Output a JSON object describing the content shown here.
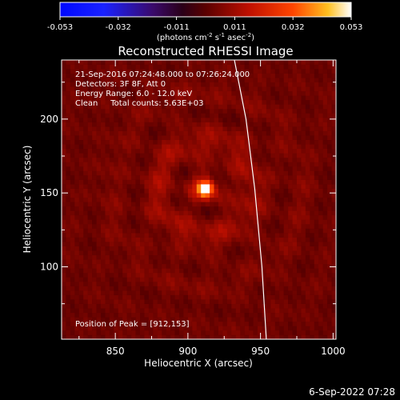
{
  "chart_data": {
    "type": "heatmap",
    "title": "Reconstructed RHESSI Image",
    "xlabel": "Heliocentric X (arcsec)",
    "ylabel": "Heliocentric Y (arcsec)",
    "xlim": [
      813,
      1002
    ],
    "ylim": [
      51,
      240
    ],
    "x_ticks": [
      850,
      900,
      950,
      1000
    ],
    "y_ticks": [
      100,
      150,
      200
    ],
    "colorbar": {
      "min": -0.053,
      "max": 0.053,
      "colormap": "rainbow-to-hot",
      "tick_labels": [
        "-0.053",
        "-0.032",
        "-0.011",
        "0.011",
        "0.032",
        "0.053"
      ],
      "unit_parts": [
        "(photons cm",
        "-2",
        " s",
        "-1",
        " asec",
        "-2",
        ")"
      ]
    },
    "annotations": [
      "21-Sep-2016 07:24:48.000 to 07:26:24.000",
      "Detectors: 3F 8F, Att 0",
      "Energy Range: 6.0 - 12.0 keV",
      "Clean     Total counts: 5.63E+03"
    ],
    "peak_text": "Position of Peak = [912,153]",
    "peak": {
      "x": 912,
      "y": 153,
      "value": 0.053
    },
    "limb": {
      "color": "#ffffff",
      "points": [
        [
          932,
          240
        ],
        [
          940,
          200
        ],
        [
          946,
          153
        ],
        [
          951,
          100
        ],
        [
          954,
          51
        ]
      ]
    },
    "background_level": 0.004,
    "grid": false
  },
  "timestamp": "6-Sep-2022 07:28",
  "colors": {
    "background": "#000000",
    "axes": "#ffffff"
  }
}
